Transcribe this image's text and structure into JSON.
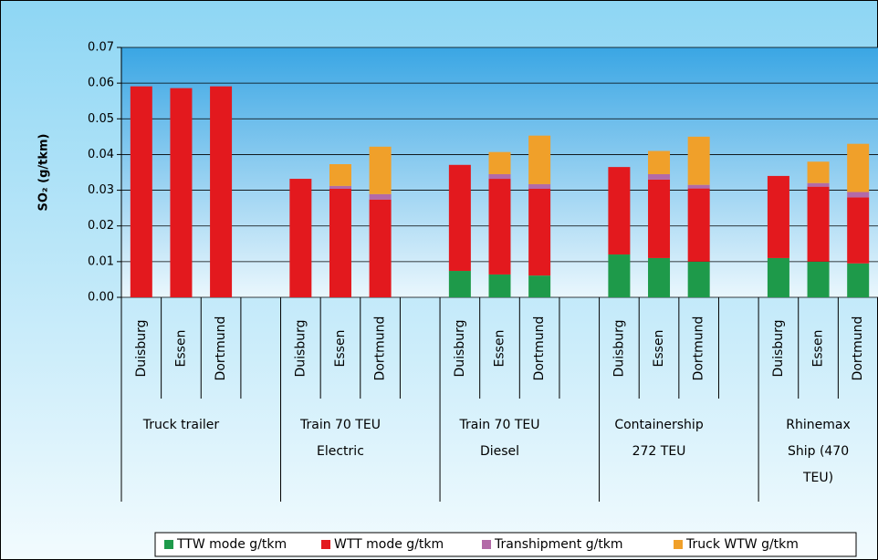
{
  "chart_data": {
    "type": "stacked-bar",
    "ylabel": "SO₂ (g/tkm)",
    "categories": [
      "Duisburg",
      "Essen",
      "Dortmund",
      null,
      "Duisburg",
      "Essen",
      "Dortmund",
      null,
      "Duisburg",
      "Essen",
      "Dortmund",
      null,
      "Duisburg",
      "Essen",
      "Dortmund",
      null,
      "Duisburg",
      "Essen",
      "Dortmund"
    ],
    "groups": [
      [
        "Truck trailer"
      ],
      [
        "Train 70 TEU",
        "Electric"
      ],
      [
        "Train 70 TEU",
        "Diesel"
      ],
      [
        "Containership",
        "272 TEU"
      ],
      [
        "Rhinemax",
        "Ship (470",
        "TEU)"
      ]
    ],
    "series": [
      {
        "name": "TTW mode g/tkm",
        "color": "#1e9a4a",
        "values": [
          0,
          0,
          0,
          null,
          0,
          0,
          0,
          null,
          0.0074,
          0.0064,
          0.0061,
          null,
          0.012,
          0.011,
          0.01,
          null,
          0.011,
          0.01,
          0.0095
        ]
      },
      {
        "name": "WTT mode g/tkm",
        "color": "#e3191e",
        "values": [
          0.0591,
          0.0586,
          0.0591,
          null,
          0.0332,
          0.0304,
          0.0274,
          null,
          0.0297,
          0.0268,
          0.0243,
          null,
          0.0245,
          0.022,
          0.0205,
          null,
          0.023,
          0.021,
          0.0185
        ]
      },
      {
        "name": "Transhipment g/tkm",
        "color": "#b36aa8",
        "values": [
          0,
          0,
          0,
          null,
          0,
          0.0008,
          0.0015,
          null,
          0,
          0.0013,
          0.0013,
          null,
          0,
          0.0015,
          0.001,
          null,
          0,
          0.001,
          0.0015
        ]
      },
      {
        "name": "Truck WTW g/tkm",
        "color": "#f0a02a",
        "values": [
          0,
          0,
          0,
          null,
          0,
          0.0061,
          0.0133,
          null,
          0,
          0.0062,
          0.0136,
          null,
          0,
          0.0065,
          0.0135,
          null,
          0,
          0.006,
          0.0135
        ]
      }
    ],
    "ylim": [
      0,
      0.07
    ],
    "yticks": [
      {
        "value": 0,
        "label": "0.00"
      },
      0.01,
      0.02,
      0.03,
      0.04,
      0.05,
      0.06,
      0.07
    ],
    "grid": true,
    "legend": "bottom"
  }
}
